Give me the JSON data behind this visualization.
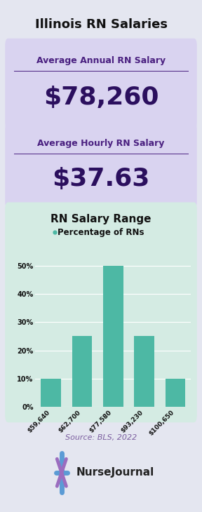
{
  "title": "Illinois RN Salaries",
  "title_fontsize": 13,
  "title_color": "#111111",
  "background_color": "#e4e6f0",
  "box1_color": "#d9d3f0",
  "box2_color": "#d9d3f0",
  "chart_bg_color": "#d4ebe3",
  "box1_label": "Average Annual RN Salary",
  "box1_value": "$78,260",
  "box2_label": "Average Hourly RN Salary",
  "box2_value": "$37.63",
  "label_color": "#4a2080",
  "value_color": "#2b0f5e",
  "label_fontsize": 9,
  "value_fontsize": 26,
  "chart_title": "RN Salary Range",
  "chart_subtitle": "Percentage of RNs",
  "chart_title_fontsize": 11,
  "chart_subtitle_fontsize": 8.5,
  "bar_categories": [
    "$59,640",
    "$62,700",
    "$77,580",
    "$93,230",
    "$100,650"
  ],
  "bar_values": [
    10,
    25,
    50,
    25,
    10
  ],
  "bar_color": "#4db8a4",
  "ytick_labels": [
    "0%",
    "10%",
    "20%",
    "30%",
    "40%",
    "50%"
  ],
  "ytick_values": [
    0,
    10,
    20,
    30,
    40,
    50
  ],
  "source_text": "Source: BLS, 2022",
  "source_color": "#7c5fa0",
  "source_fontsize": 8,
  "logo_text": "NurseJournal",
  "logo_fontsize": 11,
  "subtitle_dot_color": "#4db8a4"
}
